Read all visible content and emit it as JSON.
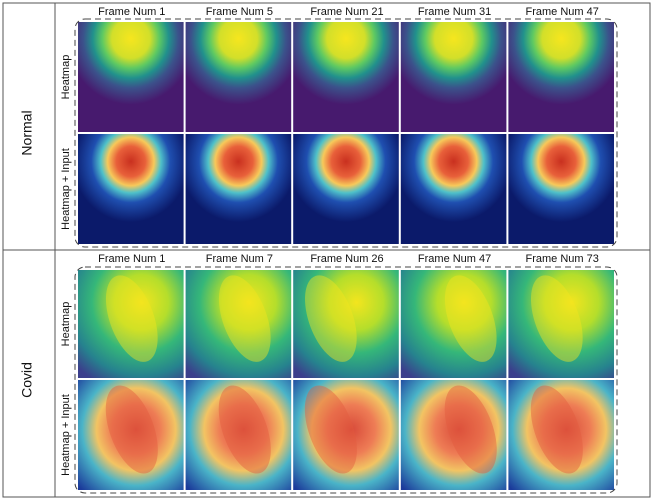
{
  "sections": [
    {
      "label": "Normal",
      "frames": [
        "Frame Num 1",
        "Frame Num 5",
        "Frame Num 21",
        "Frame Num 31",
        "Frame Num 47"
      ],
      "rows": [
        "Heatmap",
        "Heatmap + Input"
      ]
    },
    {
      "label": "Covid",
      "frames": [
        "Frame Num 1",
        "Frame Num 7",
        "Frame Num 26",
        "Frame Num 47",
        "Frame Num 73"
      ],
      "rows": [
        "Heatmap",
        "Heatmap + Input"
      ]
    }
  ]
}
